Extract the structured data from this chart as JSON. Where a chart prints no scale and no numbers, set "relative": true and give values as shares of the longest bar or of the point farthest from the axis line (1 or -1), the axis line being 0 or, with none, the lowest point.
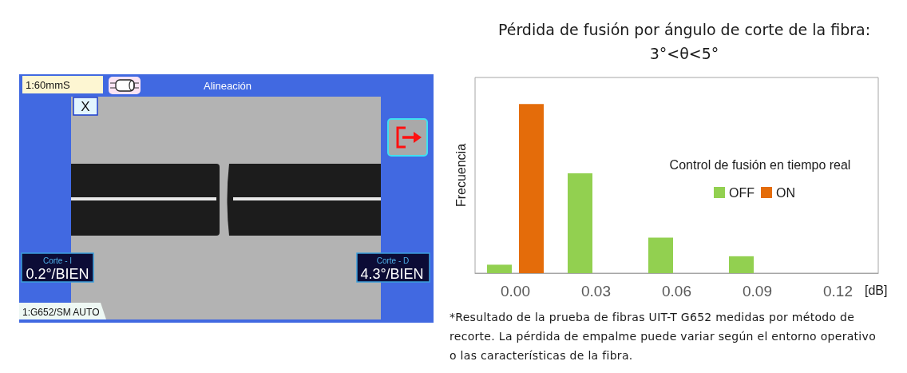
{
  "chart_data": [
    {
      "type": "other",
      "annotations": [
        "1:60mmS",
        "Alineación",
        "X",
        "Corte - I",
        "0.2°/BIEN",
        "Corte - D",
        "4.3°/BIEN",
        "1:G652/SM AUTO"
      ]
    },
    {
      "type": "bar",
      "title": "Pérdida de fusión por ángulo de corte de la fibra:",
      "subtitle": "3°<θ<5°",
      "xlabel": "[dB]",
      "ylabel": "Frecuencia",
      "legend_title": "Control de fusión en tiempo real",
      "categories": [
        "0.00",
        "0.03",
        "0.06",
        "0.09",
        "0.12"
      ],
      "series": [
        {
          "name": "OFF",
          "color": "#92d050",
          "values": [
            0.05,
            0.59,
            0.21,
            0.1,
            null
          ]
        },
        {
          "name": "ON",
          "color": "#e46c0a",
          "values": [
            1,
            null,
            null,
            null,
            null
          ]
        }
      ],
      "relative": true,
      "legend": "right",
      "annotations": [
        "*Resultado de la prueba de fibras UIT-T G652 medidas por método de recorte. La pérdida de empalme puede variar según el entorno operativo o las características de la fibra."
      ]
    }
  ]
}
